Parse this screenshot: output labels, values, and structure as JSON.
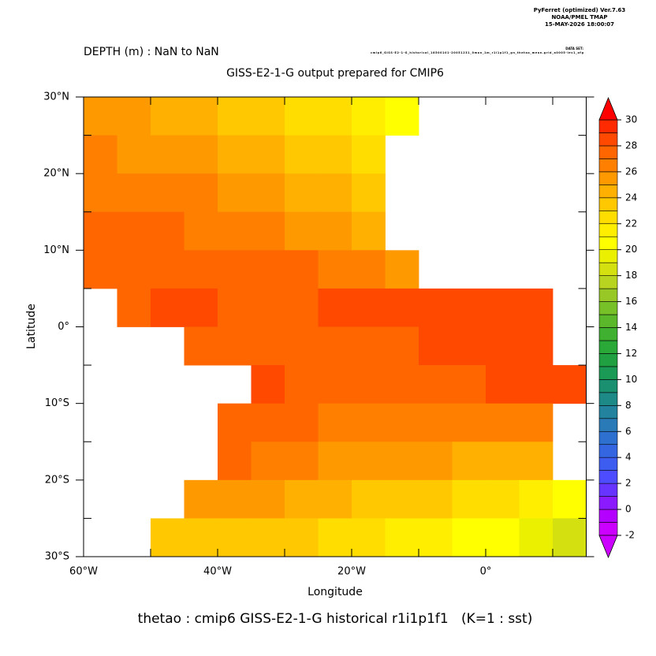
{
  "header": {
    "software": "PyFerret (optimized) Ver.7.63",
    "org": "NOAA/PMEL TMAP",
    "date": "15-MAY-2026 18:00:07",
    "dataset_label": "DATA SET:",
    "dataset": "cmip6_GISS-E2-1-G_historical_18500101-20051231_0mon_1m_r1i1p1f1_gn_thetao_mean.grid_a0005-lev1_ofg"
  },
  "chart_data": {
    "type": "heatmap",
    "subtitle": "DEPTH (m) : NaN to NaN",
    "title": "GISS-E2-1-G output prepared for CMIP6",
    "x_label": "Longitude",
    "y_label": "Latitude",
    "footer": "thetao : cmip6 GISS-E2-1-G historical r1i1p1f1   (K=1 : sst)",
    "xlim": [
      -60,
      15
    ],
    "ylim": [
      -30,
      30
    ],
    "xticks": [
      {
        "value": -60,
        "label": "60°W"
      },
      {
        "value": -40,
        "label": "40°W"
      },
      {
        "value": -20,
        "label": "20°W"
      },
      {
        "value": 0,
        "label": "0°"
      }
    ],
    "xminor_ticks": [
      -50,
      -30,
      -10,
      10
    ],
    "yticks": [
      {
        "value": 30,
        "label": "30°N"
      },
      {
        "value": 20,
        "label": "20°N"
      },
      {
        "value": 10,
        "label": "10°N"
      },
      {
        "value": 0,
        "label": "0°"
      },
      {
        "value": -10,
        "label": "10°S"
      },
      {
        "value": -20,
        "label": "20°S"
      },
      {
        "value": -30,
        "label": "30°S"
      }
    ],
    "yminor_ticks": [
      25,
      15,
      5,
      -5,
      -15,
      -25
    ],
    "cell_size": 5,
    "x": [
      -57.5,
      -52.5,
      -47.5,
      -42.5,
      -37.5,
      -32.5,
      -27.5,
      -22.5,
      -17.5,
      -12.5,
      -7.5,
      -2.5,
      2.5,
      7.5,
      12.5
    ],
    "y": [
      27.5,
      22.5,
      17.5,
      12.5,
      7.5,
      2.5,
      -2.5,
      -7.5,
      -12.5,
      -17.5,
      -22.5,
      -27.5
    ],
    "values": [
      [
        25,
        25,
        24.5,
        24,
        23.5,
        23,
        22.5,
        22,
        21,
        20.5,
        null,
        null,
        null,
        null,
        null
      ],
      [
        26,
        25.5,
        25,
        25,
        24.5,
        24,
        23.5,
        23,
        22,
        null,
        null,
        null,
        null,
        null,
        null
      ],
      [
        26.5,
        26.5,
        26,
        26,
        25.5,
        25,
        24.5,
        24,
        23.5,
        null,
        null,
        null,
        null,
        null,
        null
      ],
      [
        27,
        27,
        27,
        26.5,
        26.5,
        26,
        25.5,
        25,
        24.5,
        null,
        null,
        null,
        null,
        null,
        null
      ],
      [
        27.5,
        27.5,
        27.5,
        27.5,
        27,
        27,
        27,
        26.5,
        26,
        25.5,
        null,
        null,
        null,
        null,
        null
      ],
      [
        null,
        27.5,
        28,
        28,
        27.5,
        27.5,
        27.5,
        28,
        28.5,
        28.5,
        28.5,
        28.5,
        28.5,
        28.5,
        null
      ],
      [
        null,
        null,
        null,
        27.5,
        27,
        27,
        27,
        27.5,
        27.5,
        27.5,
        28,
        28.5,
        28.5,
        28.5,
        null
      ],
      [
        null,
        null,
        null,
        null,
        null,
        28,
        27.5,
        27,
        27,
        27,
        27.5,
        27.5,
        28,
        28,
        28
      ],
      [
        null,
        null,
        null,
        null,
        27.5,
        27.5,
        27,
        26.5,
        26.5,
        26,
        26,
        26,
        26,
        26.5,
        null
      ],
      [
        null,
        null,
        null,
        null,
        27,
        26.5,
        26,
        25.5,
        25.5,
        25,
        25,
        24.5,
        24.5,
        24,
        null
      ],
      [
        null,
        null,
        null,
        25.5,
        25.5,
        25,
        24.5,
        24,
        23.5,
        23.5,
        23,
        22.5,
        22,
        21.5,
        20.5
      ],
      [
        null,
        null,
        23,
        23.5,
        23.5,
        23,
        23,
        22.5,
        22,
        21.5,
        21,
        20.5,
        20,
        19,
        18.5
      ]
    ],
    "colorbar": {
      "lim": [
        -2,
        30
      ],
      "ticks": [
        -2,
        0,
        2,
        4,
        6,
        8,
        10,
        12,
        14,
        16,
        18,
        20,
        22,
        24,
        26,
        28,
        30
      ],
      "step": 1,
      "colors": [
        "#cc00ff",
        "#b300ff",
        "#8c1aff",
        "#6633ff",
        "#4d4dff",
        "#3d5cf0",
        "#3366e0",
        "#2e70d0",
        "#2a7ab8",
        "#23839f",
        "#1e8a88",
        "#1a9070",
        "#1a9a55",
        "#20a040",
        "#2aa838",
        "#40b030",
        "#5ab82a",
        "#78c028",
        "#98c825",
        "#b8d420",
        "#d4e010",
        "#eaf000",
        "#ffff00",
        "#ffee00",
        "#ffdd00",
        "#ffc800",
        "#ffb000",
        "#ff9900",
        "#ff7f00",
        "#ff6600",
        "#ff4800",
        "#ff2a00"
      ],
      "under_color": "#cc00ff",
      "over_color": "#ff0000"
    }
  }
}
